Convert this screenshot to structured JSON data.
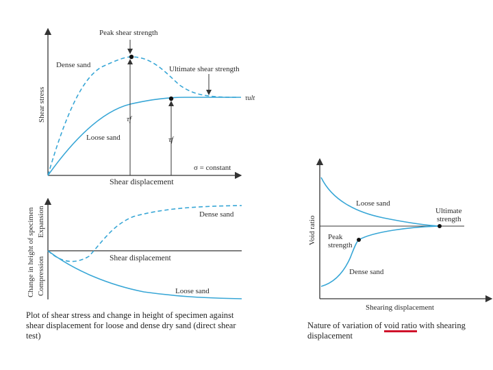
{
  "top_left": {
    "y_axis_label": "Shear stress",
    "x_axis_label": "Shear displacement",
    "peak_label": "Peak shear strength",
    "ultimate_label": "Ultimate shear strength",
    "dense_label": "Dense sand",
    "loose_label": "Loose sand",
    "tau_f": "τf",
    "tau_ult": "τult",
    "sigma_const": "σ = constant"
  },
  "bottom_left": {
    "y_label_main": "Change in height of specimen",
    "y_label_expansion": "Expansion",
    "y_label_compression": "Compression",
    "x_axis_label": "Shear displacement",
    "dense_label": "Dense sand",
    "loose_label": "Loose sand"
  },
  "right": {
    "y_axis_label": "Void ratio",
    "x_axis_label": "Shearing displacement",
    "loose_label": "Loose sand",
    "dense_label": "Dense sand",
    "peak_line1": "Peak",
    "peak_line2": "strength",
    "ultimate_line1": "Ultimate",
    "ultimate_line2": "strength"
  },
  "captions": {
    "left": "Plot of shear stress and change in height of specimen against shear displacement for loose and dense dry sand (direct shear test)",
    "right_before": "Nature of variation of ",
    "right_highlight": "void ratio",
    "right_after": " with shearing displacement"
  },
  "colors": {
    "curve": "#37a6d6",
    "axis": "#333333",
    "highlight": "#d0102a"
  }
}
